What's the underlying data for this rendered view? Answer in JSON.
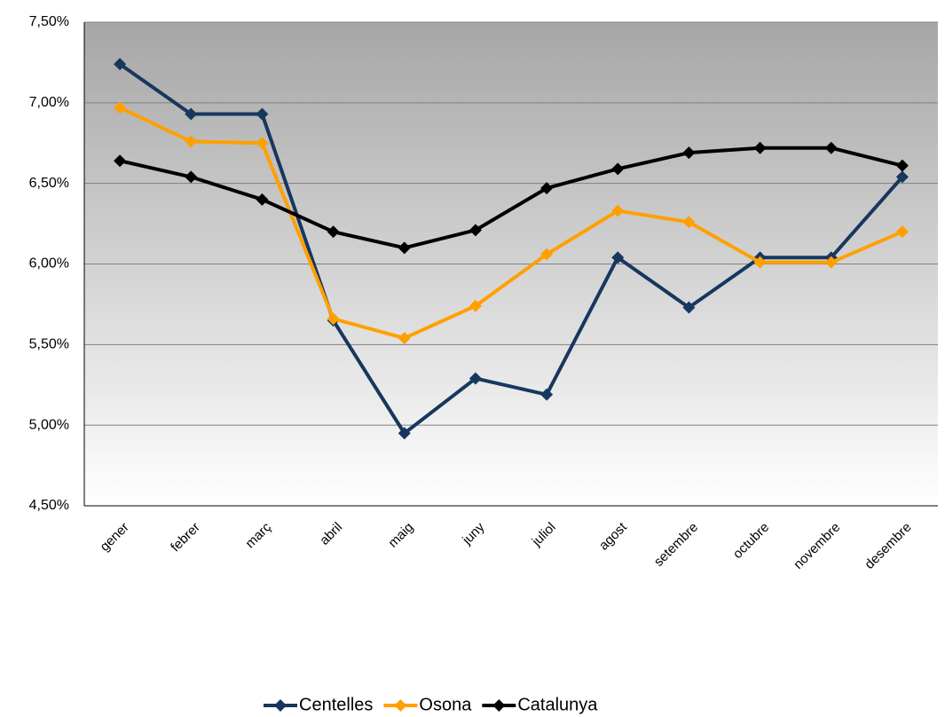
{
  "chart_data": {
    "type": "line",
    "categories": [
      "gener",
      "febrer",
      "març",
      "abril",
      "maig",
      "juny",
      "juliol",
      "agost",
      "setembre",
      "octubre",
      "novembre",
      "desembre"
    ],
    "series": [
      {
        "name": "Centelles",
        "color": "#17375e",
        "values": [
          7.24,
          6.93,
          6.93,
          5.65,
          4.95,
          5.29,
          5.19,
          6.04,
          5.73,
          6.04,
          6.04,
          6.54
        ]
      },
      {
        "name": "Osona",
        "color": "#ffa000",
        "values": [
          6.97,
          6.76,
          6.75,
          5.66,
          5.54,
          5.74,
          6.06,
          6.33,
          6.26,
          6.01,
          6.01,
          6.2
        ]
      },
      {
        "name": "Catalunya",
        "color": "#000000",
        "values": [
          6.64,
          6.54,
          6.4,
          6.2,
          6.1,
          6.21,
          6.47,
          6.59,
          6.69,
          6.72,
          6.72,
          6.61
        ]
      }
    ],
    "ylim": [
      4.5,
      7.5
    ],
    "yticks": [
      {
        "value": 4.5,
        "label": "4,50%"
      },
      {
        "value": 5.0,
        "label": "5,00%"
      },
      {
        "value": 5.5,
        "label": "5,50%"
      },
      {
        "value": 6.0,
        "label": "6,00%"
      },
      {
        "value": 6.5,
        "label": "6,50%"
      },
      {
        "value": 7.0,
        "label": "7,00%"
      },
      {
        "value": 7.5,
        "label": "7,50%"
      }
    ],
    "grid": true,
    "legend": "bottom"
  }
}
